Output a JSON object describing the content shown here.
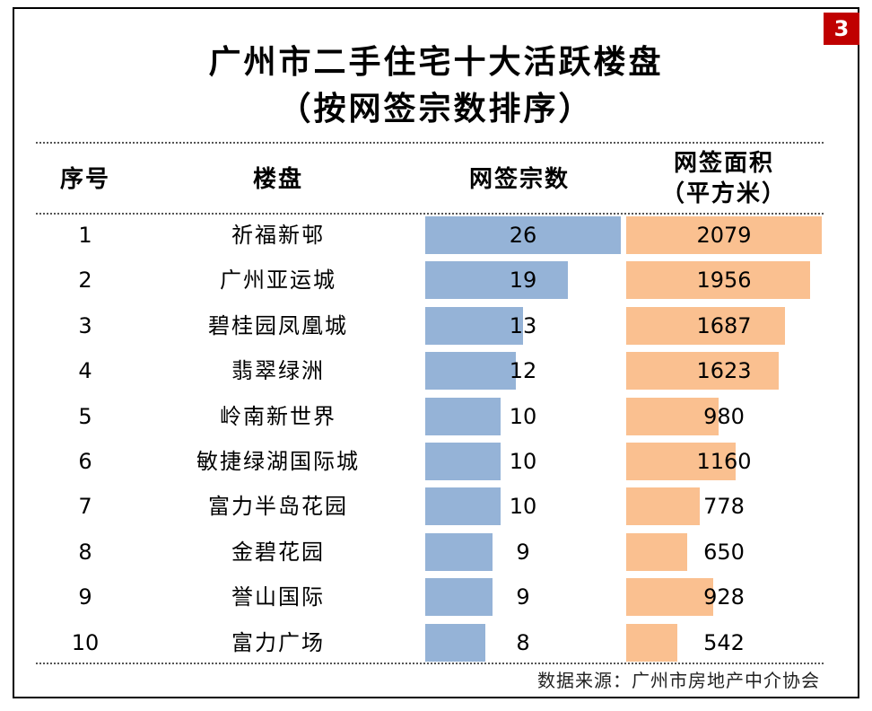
{
  "page_number": "3",
  "title_line1": "广州市二手住宅十大活跃楼盘",
  "title_line2": "（按网签宗数排序）",
  "headers": {
    "rank": "序号",
    "project": "楼盘",
    "count": "网签宗数",
    "area_line1": "网签面积",
    "area_line2": "（平方米）"
  },
  "source": "数据来源：广州市房地产中介协会",
  "colors": {
    "count_bar": "#95b3d7",
    "area_bar": "#fac090",
    "badge": "#c00000"
  },
  "chart_data": {
    "type": "table",
    "title": "广州市二手住宅十大活跃楼盘（按网签宗数排序）",
    "columns": [
      "序号",
      "楼盘",
      "网签宗数",
      "网签面积（平方米）"
    ],
    "rows": [
      {
        "rank": "1",
        "name": "祈福新邨",
        "count": 26,
        "area": 2079
      },
      {
        "rank": "2",
        "name": "广州亚运城",
        "count": 19,
        "area": 1956
      },
      {
        "rank": "3",
        "name": "碧桂园凤凰城",
        "count": 13,
        "area": 1687
      },
      {
        "rank": "4",
        "name": "翡翠绿洲",
        "count": 12,
        "area": 1623
      },
      {
        "rank": "5",
        "name": "岭南新世界",
        "count": 10,
        "area": 980
      },
      {
        "rank": "6",
        "name": "敏捷绿湖国际城",
        "count": 10,
        "area": 1160
      },
      {
        "rank": "7",
        "name": "富力半岛花园",
        "count": 10,
        "area": 778
      },
      {
        "rank": "8",
        "name": "金碧花园",
        "count": 9,
        "area": 650
      },
      {
        "rank": "9",
        "name": "誉山国际",
        "count": 9,
        "area": 928
      },
      {
        "rank": "10",
        "name": "富力广场",
        "count": 8,
        "area": 542
      }
    ],
    "count_bar_max": 26,
    "area_bar_max": 2079
  }
}
